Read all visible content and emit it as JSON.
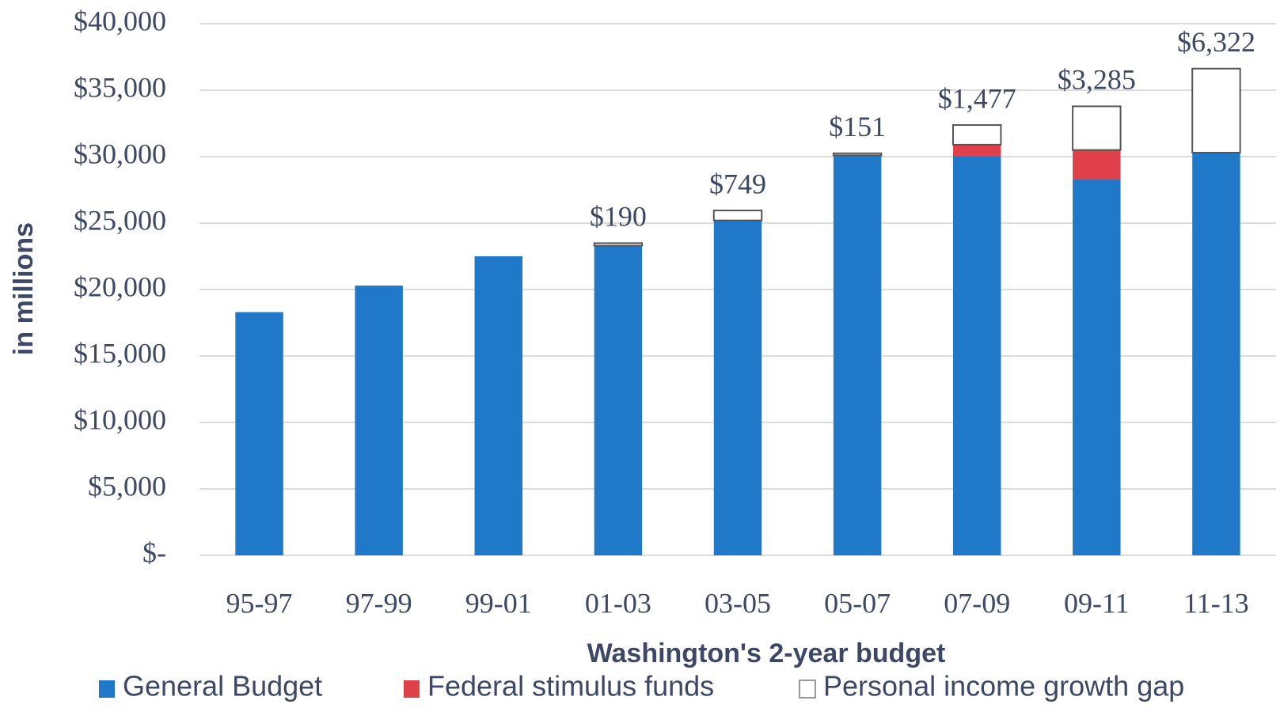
{
  "chart_data": {
    "type": "stacked_bar",
    "categories": [
      "95-97",
      "97-99",
      "99-01",
      "01-03",
      "03-05",
      "05-07",
      "07-09",
      "09-11",
      "11-13"
    ],
    "series": [
      {
        "name": "General Budget",
        "color": "#1f78c8",
        "values": [
          18300,
          20300,
          22500,
          23300,
          25200,
          30100,
          30000,
          28300,
          30300
        ]
      },
      {
        "name": "Federal stimulus funds",
        "color": "#e0404a",
        "values": [
          null,
          null,
          null,
          null,
          null,
          null,
          900,
          2200,
          null
        ]
      },
      {
        "name": "Personal income growth gap",
        "color": "#ffffff",
        "values": [
          null,
          null,
          null,
          190,
          749,
          151,
          1477,
          3285,
          6322
        ],
        "value_labels": [
          null,
          null,
          null,
          "$190",
          "$749",
          "$151",
          "$1,477",
          "$3,285",
          "$6,322"
        ]
      }
    ],
    "ylim": [
      0,
      40000
    ],
    "yticks": [
      {
        "value": 0,
        "label": "$-"
      },
      {
        "value": 5000,
        "label": "$5,000"
      },
      {
        "value": 10000,
        "label": "$10,000"
      },
      {
        "value": 15000,
        "label": "$15,000"
      },
      {
        "value": 20000,
        "label": "$20,000"
      },
      {
        "value": 25000,
        "label": "$25,000"
      },
      {
        "value": 30000,
        "label": "$30,000"
      },
      {
        "value": 35000,
        "label": "$35,000"
      },
      {
        "value": 40000,
        "label": "$40,000"
      }
    ],
    "ylabel": "in millions",
    "xlabel": "Washington's 2-year budget",
    "grid": true,
    "legend": "bottom"
  }
}
